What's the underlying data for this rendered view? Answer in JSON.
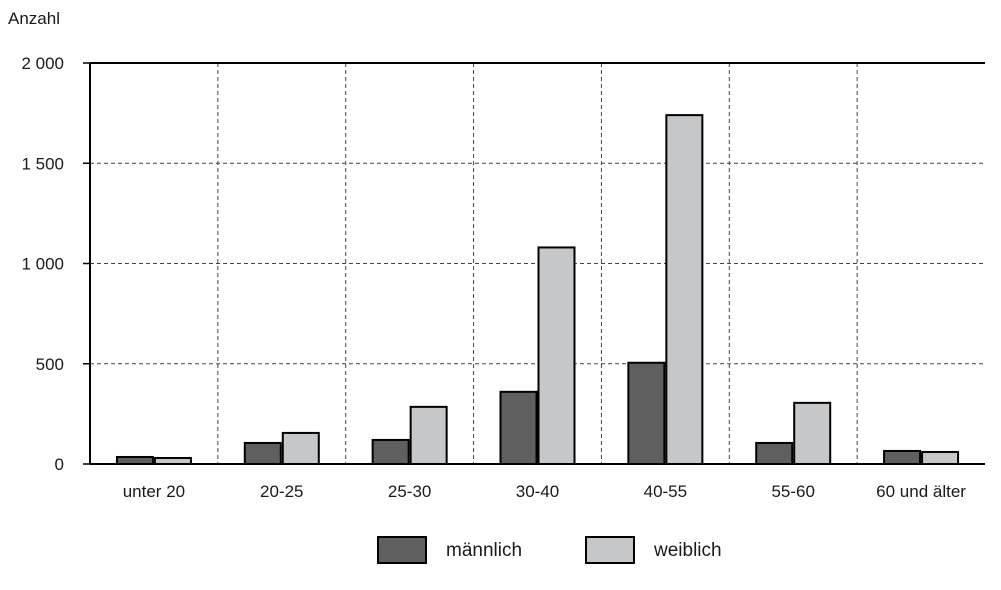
{
  "chart_data": {
    "type": "bar",
    "ylabel": "Anzahl",
    "ylim": [
      0,
      2000
    ],
    "y_ticks": [
      0,
      500,
      1000,
      1500,
      2000
    ],
    "y_tick_labels": [
      "0",
      "500",
      "1 000",
      "1 500",
      "2 000"
    ],
    "categories": [
      "unter 20",
      "20-25",
      "25-30",
      "30-40",
      "40-55",
      "55-60",
      "60 und älter"
    ],
    "series": [
      {
        "name": "männlich",
        "color": "#5f5f5f",
        "values": [
          35,
          105,
          120,
          360,
          505,
          105,
          65
        ]
      },
      {
        "name": "weiblich",
        "color": "#c6c7c9",
        "values": [
          30,
          155,
          285,
          1080,
          1740,
          305,
          60
        ]
      }
    ],
    "grid": true,
    "legend_position": "bottom-center"
  }
}
